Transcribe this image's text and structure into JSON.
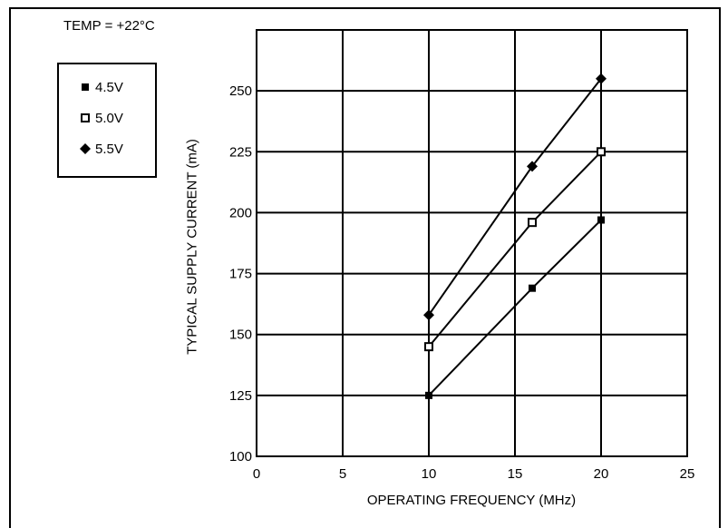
{
  "annotation": "TEMP = +22°C",
  "chart_data": {
    "type": "line",
    "xlabel": "OPERATING FREQUENCY (MHz)",
    "ylabel": "TYPICAL SUPPLY CURRENT (mA)",
    "xlim": [
      0,
      25
    ],
    "ylim": [
      100,
      275
    ],
    "xticks": [
      "0",
      "5",
      "10",
      "15",
      "20",
      "25"
    ],
    "yticks": [
      "100",
      "125",
      "150",
      "175",
      "200",
      "225",
      "250"
    ],
    "grid": true,
    "legend_position": "top-left",
    "series": [
      {
        "name": "4.5V",
        "marker": "filled-square",
        "x": [
          10,
          16,
          20
        ],
        "y": [
          125,
          169,
          197
        ]
      },
      {
        "name": "5.0V",
        "marker": "open-square",
        "x": [
          10,
          16,
          20
        ],
        "y": [
          145,
          196,
          225
        ]
      },
      {
        "name": "5.5V",
        "marker": "filled-diamond",
        "x": [
          10,
          16,
          20
        ],
        "y": [
          158,
          219,
          255
        ]
      }
    ]
  }
}
